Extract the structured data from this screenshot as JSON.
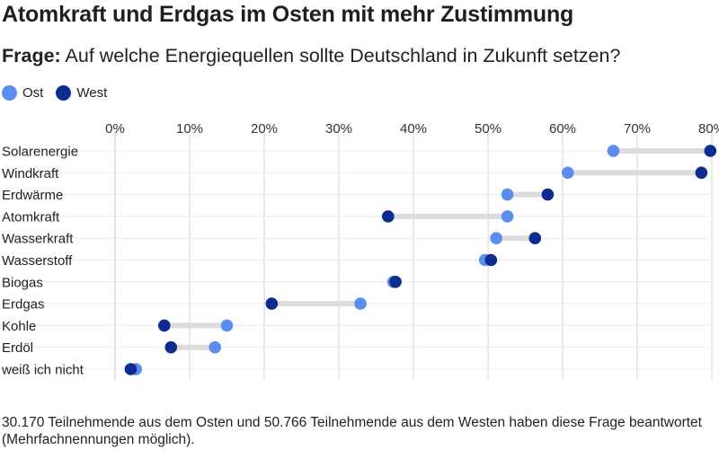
{
  "title": "Atomkraft und Erdgas im Osten mit mehr Zustimmung",
  "question_lead": "Frage:",
  "question_text": "Auf welche Energiequellen sollte Deutschland in Zukunft setzen?",
  "footnote": "30.170 Teilnehmende aus dem Osten und 50.766 Teilnehmende aus dem Westen haben diese Frage beantwortet (Mehrfachnennungen möglich).",
  "colors": {
    "ost": "#5b8cf0",
    "west": "#0c2d8f",
    "connector": "#dcdcdc",
    "grid": "#e3e3e3"
  },
  "chart_data": {
    "type": "dot-range",
    "ticks": [
      "0%",
      "10%",
      "20%",
      "30%",
      "40%",
      "50%",
      "60%",
      "70%",
      "80%"
    ],
    "xlim": [
      0,
      80
    ],
    "grid": true,
    "legend_position": "top-left",
    "categories": [
      "Solarenergie",
      "Windkraft",
      "Erdwärme",
      "Atomkraft",
      "Wasserkraft",
      "Wasserstoff",
      "Biogas",
      "Erdgas",
      "Kohle",
      "Erdöl",
      "weiß ich nicht"
    ],
    "series": [
      {
        "name": "Ost",
        "values": [
          66.8,
          60.7,
          52.6,
          52.6,
          51.1,
          49.6,
          37.3,
          32.9,
          15.0,
          13.4,
          2.8
        ]
      },
      {
        "name": "West",
        "values": [
          79.8,
          78.6,
          58.0,
          36.6,
          56.3,
          50.4,
          37.6,
          21.0,
          6.6,
          7.5,
          2.1
        ]
      }
    ]
  }
}
